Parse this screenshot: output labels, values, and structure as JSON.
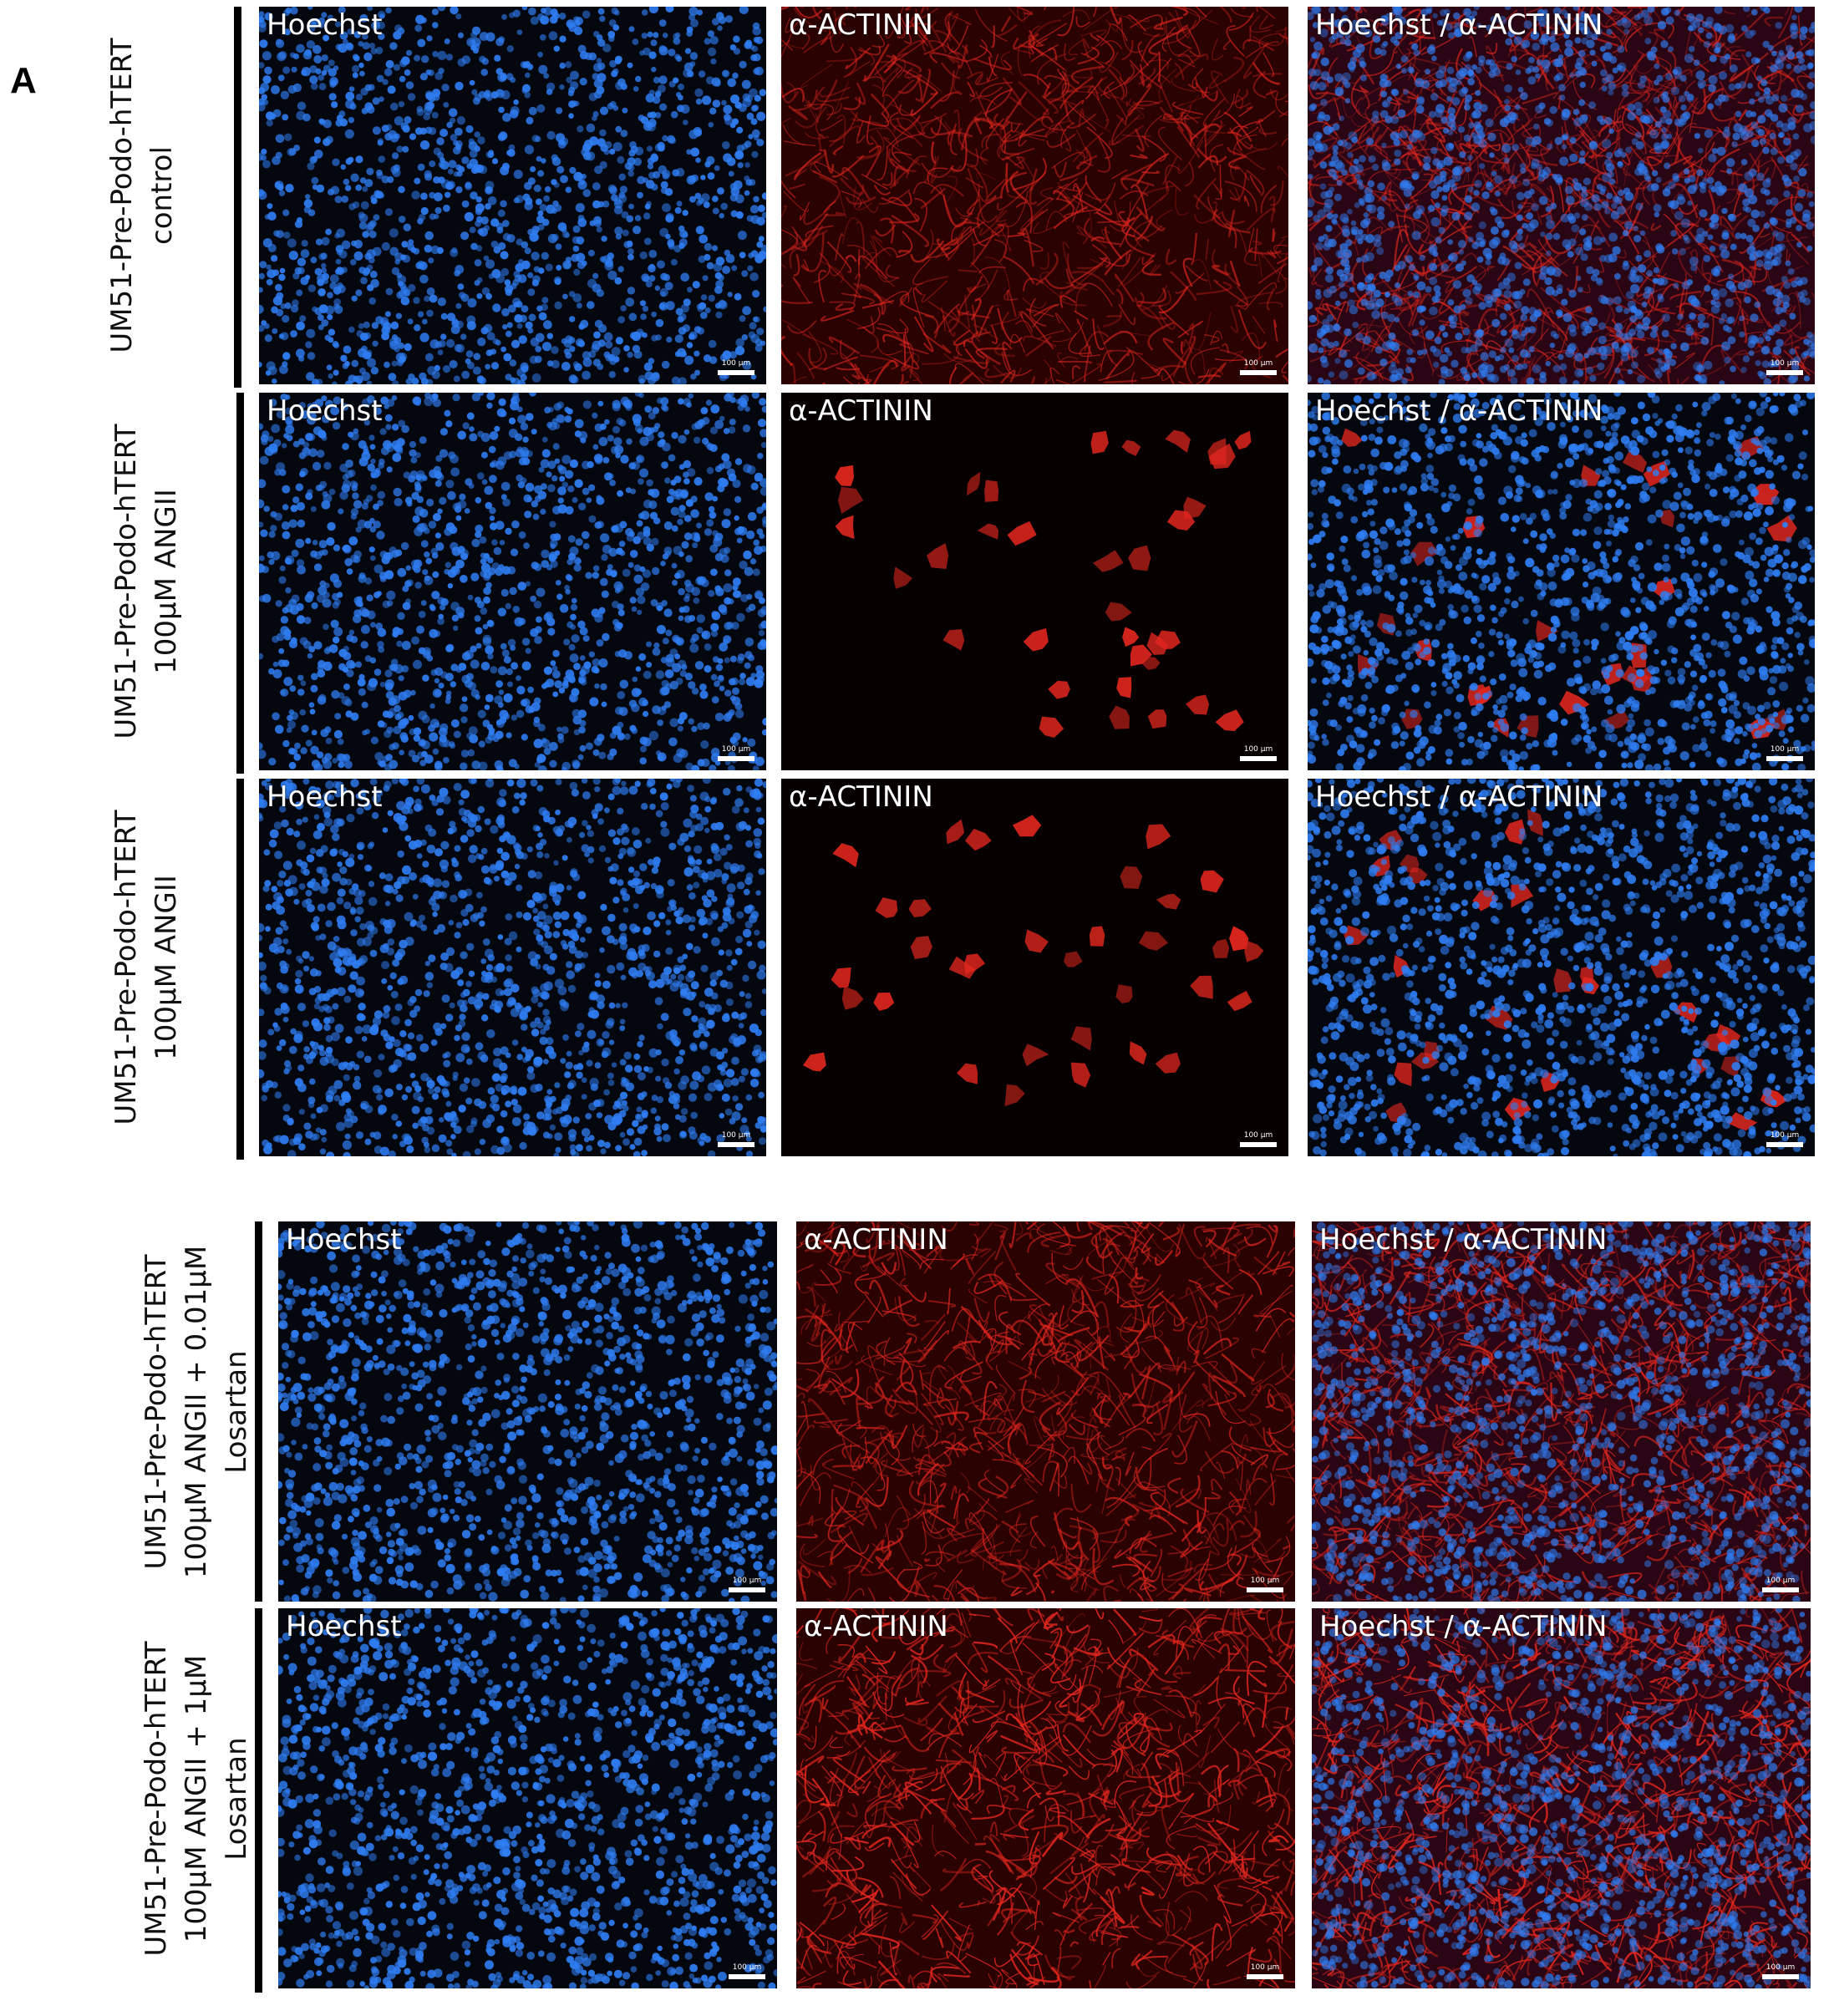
{
  "figure": {
    "panel_letter": "A",
    "scale_bar_text": "100 µm",
    "stain_labels": {
      "blue": "Hoechst",
      "red": "α-ACTININ",
      "merge": "Hoechst / α-ACTININ"
    },
    "rows": [
      {
        "line1": "UM51-Pre-Podo-hTERT",
        "line2": "control",
        "line3": "",
        "red_pattern": "network",
        "red_intensity": 0.75
      },
      {
        "line1": "UM51-Pre-Podo-hTERT",
        "line2": "100µM ANGII",
        "line3": "",
        "red_pattern": "sparse",
        "red_intensity": 0.12
      },
      {
        "line1": "UM51-Pre-Podo-hTERT",
        "line2": "100µM ANGII",
        "line3": "",
        "red_pattern": "sparse",
        "red_intensity": 0.1
      },
      {
        "line1": "UM51-Pre-Podo-hTERT",
        "line2": "100µM ANGII + 0.01µM",
        "line3": "Losartan",
        "red_pattern": "network",
        "red_intensity": 0.85
      },
      {
        "line1": "UM51-Pre-Podo-hTERT",
        "line2": "100µM ANGII + 1µM",
        "line3": "Losartan",
        "red_pattern": "network",
        "red_intensity": 1.0
      }
    ],
    "colors": {
      "nuclei": "#2f7df2",
      "actinin": "#e0261e",
      "background_dark": "#05070f",
      "background_red": "#2a0202"
    }
  }
}
